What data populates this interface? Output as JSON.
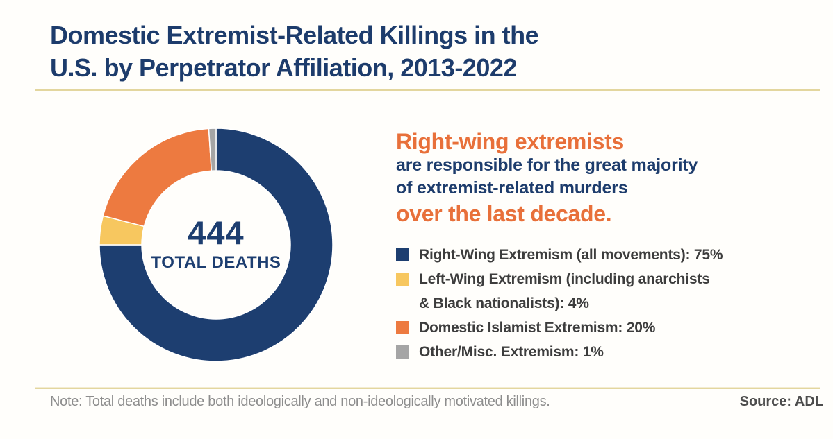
{
  "title": "Domestic Extremist-Related Killings in the\nU.S. by Perpetrator Affiliation, 2013-2022",
  "headline": {
    "line1": "Right-wing extremists",
    "line2": "are responsible for the great majority",
    "line3": "of extremist-related murders",
    "line4": "over the last decade."
  },
  "footer": {
    "note": "Note: Total deaths include both ideologically and non-ideologically motivated killings.",
    "source": "Source: ADL"
  },
  "colors": {
    "navy": "#1d3e70",
    "orange": "#ed7a40",
    "yellow": "#f7c75f",
    "gray": "#a5a5a5",
    "headline_orange": "#e8703a",
    "headline_navy": "#1d3c6c",
    "gold_divider": "#e3d69e"
  },
  "chart_data": {
    "type": "pie",
    "donut": true,
    "title": "Domestic Extremist-Related Killings in the U.S. by Perpetrator Affiliation, 2013-2022",
    "center_value": "444",
    "center_label": "TOTAL DEATHS",
    "total_deaths": 444,
    "start_angle_deg": 0,
    "direction": "clockwise",
    "legend_position": "right",
    "legend": [
      {
        "label": "Right-Wing Extremism (all movements): 75%",
        "name": "Right-Wing Extremism (all movements)",
        "value": 75,
        "color": "#1d3e70"
      },
      {
        "label": "Left-Wing Extremism (including anarchists\n& Black nationalists): 4%",
        "name": "Left-Wing Extremism (including anarchists & Black nationalists)",
        "value": 4,
        "color": "#f7c75f"
      },
      {
        "label": "Domestic Islamist Extremism: 20%",
        "name": "Domestic Islamist Extremism",
        "value": 20,
        "color": "#ed7a40"
      },
      {
        "label": "Other/Misc. Extremism: 1%",
        "name": "Other/Misc. Extremism",
        "value": 1,
        "color": "#a5a5a5"
      }
    ]
  }
}
